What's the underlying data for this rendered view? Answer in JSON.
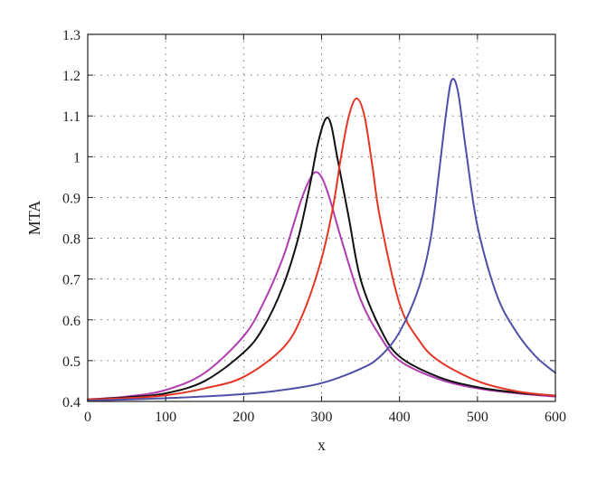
{
  "chart_data": {
    "type": "line",
    "title": "",
    "xlabel": "x",
    "ylabel": "MTA",
    "xlim": [
      0,
      600
    ],
    "ylim": [
      0.4,
      1.3
    ],
    "x_ticks": [
      0,
      100,
      200,
      300,
      400,
      500,
      600
    ],
    "y_ticks": [
      "0.4",
      "0.5",
      "0.6",
      "0.7",
      "0.8",
      "0.9",
      "1",
      "1.1",
      "1.2",
      "1.3"
    ],
    "grid": true,
    "legend": "none",
    "series": [
      {
        "color": "#b03cb0",
        "x": [
          0,
          50,
          100,
          150,
          200,
          225,
          250,
          265,
          275,
          285,
          292,
          300,
          310,
          325,
          350,
          375,
          400,
          450,
          500,
          550,
          600
        ],
        "y": [
          0.405,
          0.412,
          0.428,
          0.47,
          0.56,
          0.64,
          0.75,
          0.84,
          0.9,
          0.945,
          0.962,
          0.95,
          0.9,
          0.8,
          0.65,
          0.56,
          0.5,
          0.455,
          0.432,
          0.42,
          0.412
        ]
      },
      {
        "color": "#111111",
        "x": [
          0,
          50,
          100,
          150,
          200,
          225,
          250,
          270,
          285,
          295,
          305,
          312,
          320,
          335,
          350,
          375,
          400,
          450,
          500,
          550,
          600
        ],
        "y": [
          0.405,
          0.41,
          0.42,
          0.45,
          0.52,
          0.58,
          0.68,
          0.8,
          0.93,
          1.03,
          1.092,
          1.08,
          1.0,
          0.85,
          0.7,
          0.58,
          0.51,
          0.46,
          0.435,
          0.422,
          0.414
        ]
      },
      {
        "color": "#e53525",
        "x": [
          0,
          50,
          100,
          150,
          200,
          250,
          275,
          300,
          315,
          325,
          335,
          345,
          355,
          365,
          375,
          400,
          425,
          450,
          500,
          550,
          600
        ],
        "y": [
          0.405,
          0.408,
          0.415,
          0.432,
          0.46,
          0.53,
          0.61,
          0.75,
          0.88,
          1.0,
          1.1,
          1.143,
          1.1,
          0.98,
          0.85,
          0.64,
          0.55,
          0.5,
          0.45,
          0.425,
          0.414
        ]
      },
      {
        "color": "#4f4fa8",
        "x": [
          0,
          100,
          200,
          250,
          300,
          350,
          375,
          400,
          425,
          440,
          450,
          460,
          467,
          475,
          485,
          500,
          525,
          550,
          575,
          600
        ],
        "y": [
          0.402,
          0.408,
          0.418,
          0.428,
          0.445,
          0.48,
          0.51,
          0.57,
          0.68,
          0.8,
          0.95,
          1.11,
          1.188,
          1.16,
          1.02,
          0.83,
          0.66,
          0.57,
          0.51,
          0.47
        ]
      }
    ]
  }
}
